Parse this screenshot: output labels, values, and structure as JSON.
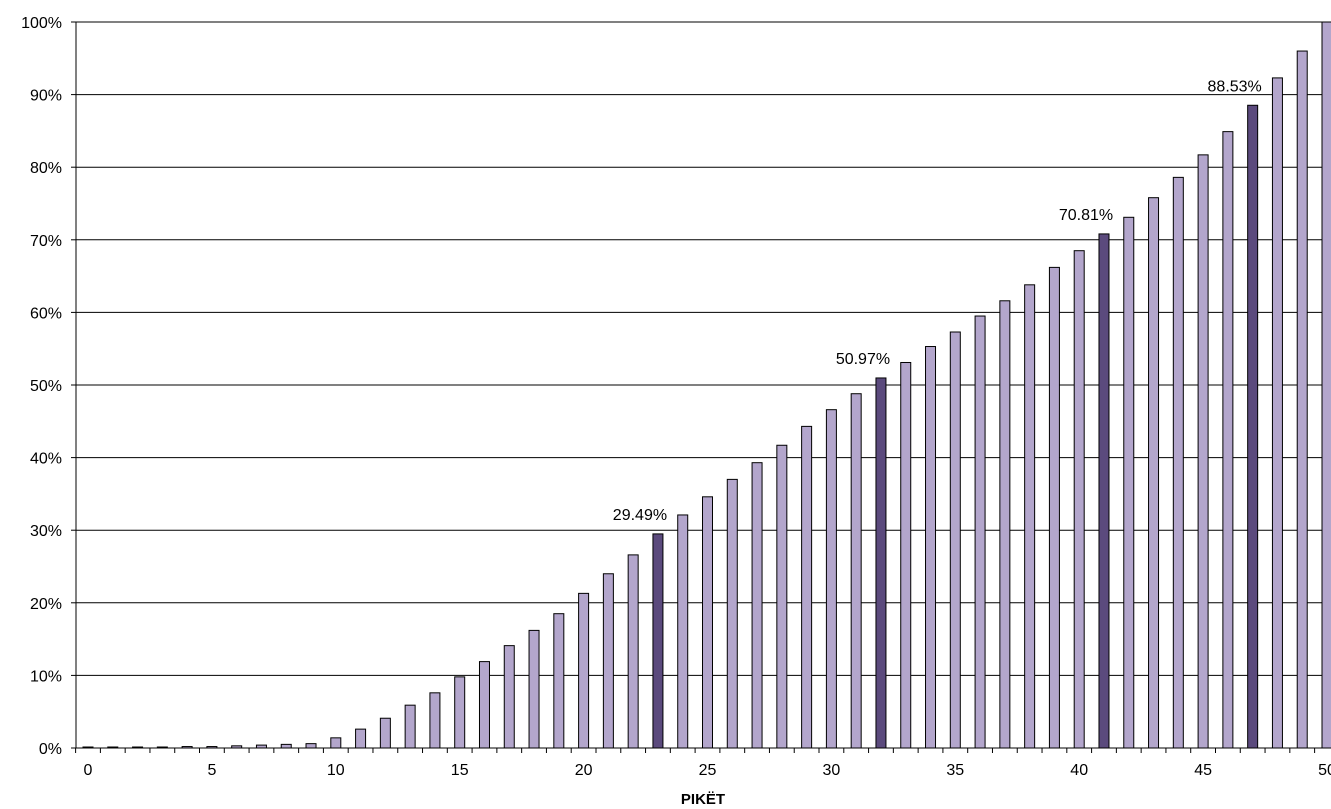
{
  "chart_data": {
    "type": "bar",
    "title": "",
    "xlabel": "PIKËT",
    "ylabel": "",
    "x": [
      0,
      1,
      2,
      3,
      4,
      5,
      6,
      7,
      8,
      9,
      10,
      11,
      12,
      13,
      14,
      15,
      16,
      17,
      18,
      19,
      20,
      21,
      22,
      23,
      24,
      25,
      26,
      27,
      28,
      29,
      30,
      31,
      32,
      33,
      34,
      35,
      36,
      37,
      38,
      39,
      40,
      41,
      42,
      43,
      44,
      45,
      46,
      47,
      48,
      49,
      50
    ],
    "values": [
      0.1,
      0.1,
      0.1,
      0.1,
      0.2,
      0.2,
      0.3,
      0.4,
      0.5,
      0.6,
      1.4,
      2.6,
      4.1,
      5.9,
      7.6,
      9.8,
      11.9,
      14.1,
      16.2,
      18.5,
      21.3,
      24.0,
      26.6,
      29.49,
      32.1,
      34.6,
      37.0,
      39.3,
      41.7,
      44.3,
      46.6,
      48.8,
      50.97,
      53.1,
      55.3,
      57.3,
      59.5,
      61.6,
      63.8,
      66.2,
      68.5,
      70.81,
      73.1,
      75.8,
      78.6,
      81.7,
      84.9,
      88.53,
      92.3,
      96.0,
      100.0
    ],
    "highlighted_x": [
      23,
      32,
      41,
      47
    ],
    "labels": [
      {
        "x": 23,
        "text": "29.49%"
      },
      {
        "x": 32,
        "text": "50.97%"
      },
      {
        "x": 41,
        "text": "70.81%"
      },
      {
        "x": 47,
        "text": "88.53%"
      }
    ],
    "x_ticks": [
      0,
      5,
      10,
      15,
      20,
      25,
      30,
      35,
      40,
      45,
      50
    ],
    "y_ticks": [
      "0%",
      "10%",
      "20%",
      "30%",
      "40%",
      "50%",
      "60%",
      "70%",
      "80%",
      "90%",
      "100%"
    ],
    "ylim": [
      0,
      100
    ],
    "grid": true,
    "legend": "none",
    "colors": {
      "bar": "#b3a6cc",
      "bar_highlight": "#5b4a7d",
      "bar_border": "#000000",
      "grid": "#000000"
    }
  }
}
